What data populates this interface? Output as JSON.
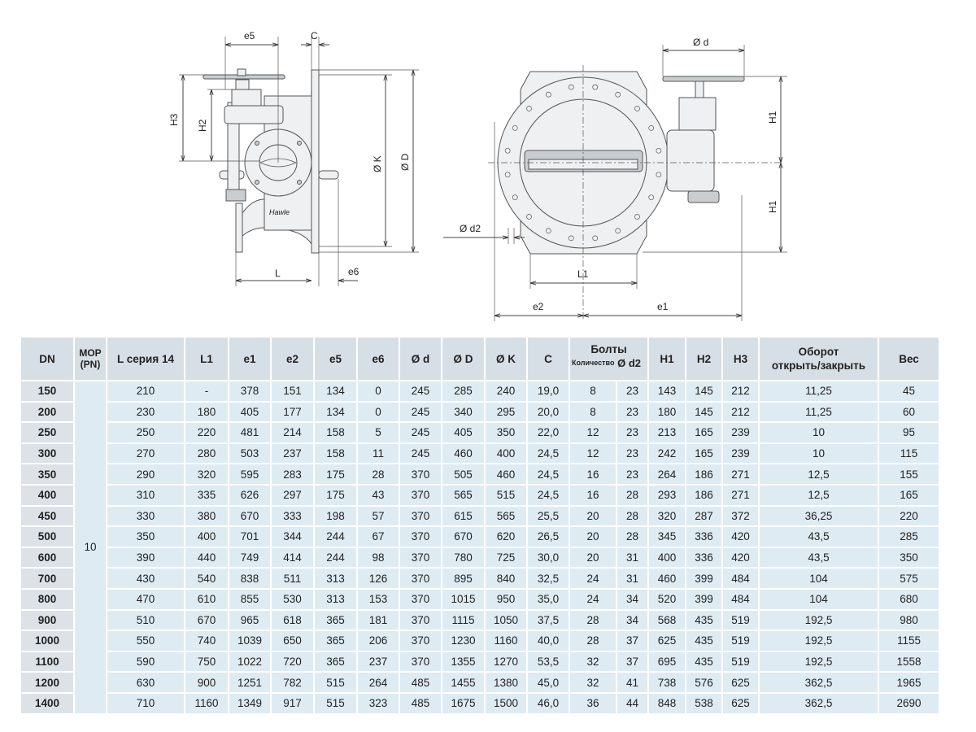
{
  "drawings": {
    "side_view": {
      "e5": "e5",
      "C": "C",
      "H3": "H3",
      "H2": "H2",
      "OK": "Ø K",
      "OD": "Ø D",
      "L": "L",
      "e6": "e6",
      "logo": "Hawle"
    },
    "front_view": {
      "Od": "Ø d",
      "H1_top": "H1",
      "H1_bottom": "H1",
      "Od2": "Ø d2",
      "L1": "L1",
      "e2": "e2",
      "e1": "e1"
    }
  },
  "table": {
    "headers": {
      "dn": "DN",
      "mop": "МОР",
      "mop_sub": "(PN)",
      "l": "L серия 14",
      "l1": "L1",
      "e1": "e1",
      "e2": "e2",
      "e5": "e5",
      "e6": "e6",
      "od": "Ø d",
      "oD": "Ø D",
      "oK": "Ø K",
      "c": "C",
      "bolts": "Болты",
      "bolts_qty": "Количество",
      "bolts_d2": "Ø d2",
      "h1": "H1",
      "h2": "H2",
      "h3": "H3",
      "turns": "Оборот",
      "turns_sub": "открыть/закрыть",
      "weight": "Вес"
    },
    "mop_value": "10",
    "rows": [
      [
        "150",
        "210",
        "-",
        "378",
        "151",
        "134",
        "0",
        "245",
        "285",
        "240",
        "19,0",
        "8",
        "23",
        "143",
        "145",
        "212",
        "11,25",
        "45"
      ],
      [
        "200",
        "230",
        "180",
        "405",
        "177",
        "134",
        "0",
        "245",
        "340",
        "295",
        "20,0",
        "8",
        "23",
        "180",
        "145",
        "212",
        "11,25",
        "60"
      ],
      [
        "250",
        "250",
        "220",
        "481",
        "214",
        "158",
        "5",
        "245",
        "405",
        "350",
        "22,0",
        "12",
        "23",
        "213",
        "165",
        "239",
        "10",
        "95"
      ],
      [
        "300",
        "270",
        "280",
        "503",
        "237",
        "158",
        "11",
        "245",
        "460",
        "400",
        "24,5",
        "12",
        "23",
        "242",
        "165",
        "239",
        "10",
        "115"
      ],
      [
        "350",
        "290",
        "320",
        "595",
        "283",
        "175",
        "28",
        "370",
        "505",
        "460",
        "24,5",
        "16",
        "23",
        "264",
        "186",
        "271",
        "12,5",
        "155"
      ],
      [
        "400",
        "310",
        "335",
        "626",
        "297",
        "175",
        "43",
        "370",
        "565",
        "515",
        "24,5",
        "16",
        "28",
        "293",
        "186",
        "271",
        "12,5",
        "165"
      ],
      [
        "450",
        "330",
        "380",
        "670",
        "333",
        "198",
        "57",
        "370",
        "615",
        "565",
        "25,5",
        "20",
        "28",
        "320",
        "287",
        "372",
        "36,25",
        "220"
      ],
      [
        "500",
        "350",
        "400",
        "701",
        "344",
        "244",
        "67",
        "370",
        "670",
        "620",
        "26,5",
        "20",
        "28",
        "345",
        "336",
        "420",
        "43,5",
        "285"
      ],
      [
        "600",
        "390",
        "440",
        "749",
        "414",
        "244",
        "98",
        "370",
        "780",
        "725",
        "30,0",
        "20",
        "31",
        "400",
        "336",
        "420",
        "43,5",
        "350"
      ],
      [
        "700",
        "430",
        "540",
        "838",
        "511",
        "313",
        "126",
        "370",
        "895",
        "840",
        "32,5",
        "24",
        "31",
        "460",
        "399",
        "484",
        "104",
        "575"
      ],
      [
        "800",
        "470",
        "610",
        "855",
        "530",
        "313",
        "153",
        "370",
        "1015",
        "950",
        "35,0",
        "24",
        "34",
        "520",
        "399",
        "484",
        "104",
        "680"
      ],
      [
        "900",
        "510",
        "670",
        "965",
        "618",
        "365",
        "181",
        "370",
        "1115",
        "1050",
        "37,5",
        "28",
        "34",
        "568",
        "435",
        "519",
        "192,5",
        "980"
      ],
      [
        "1000",
        "550",
        "740",
        "1039",
        "650",
        "365",
        "206",
        "370",
        "1230",
        "1160",
        "40,0",
        "28",
        "37",
        "625",
        "435",
        "519",
        "192,5",
        "1155"
      ],
      [
        "1100",
        "590",
        "750",
        "1022",
        "720",
        "365",
        "237",
        "370",
        "1355",
        "1270",
        "53,5",
        "32",
        "37",
        "695",
        "435",
        "519",
        "192,5",
        "1558"
      ],
      [
        "1200",
        "630",
        "900",
        "1251",
        "782",
        "515",
        "264",
        "485",
        "1455",
        "1380",
        "45,0",
        "32",
        "41",
        "738",
        "576",
        "625",
        "362,5",
        "1965"
      ],
      [
        "1400",
        "710",
        "1160",
        "1349",
        "917",
        "515",
        "323",
        "485",
        "1675",
        "1500",
        "46,0",
        "36",
        "44",
        "848",
        "538",
        "625",
        "362,5",
        "2690"
      ]
    ]
  },
  "colors": {
    "header_bg": "#d7dfe6",
    "cell_bg": "#deebf3",
    "dn_bg": "#dce2e8"
  }
}
